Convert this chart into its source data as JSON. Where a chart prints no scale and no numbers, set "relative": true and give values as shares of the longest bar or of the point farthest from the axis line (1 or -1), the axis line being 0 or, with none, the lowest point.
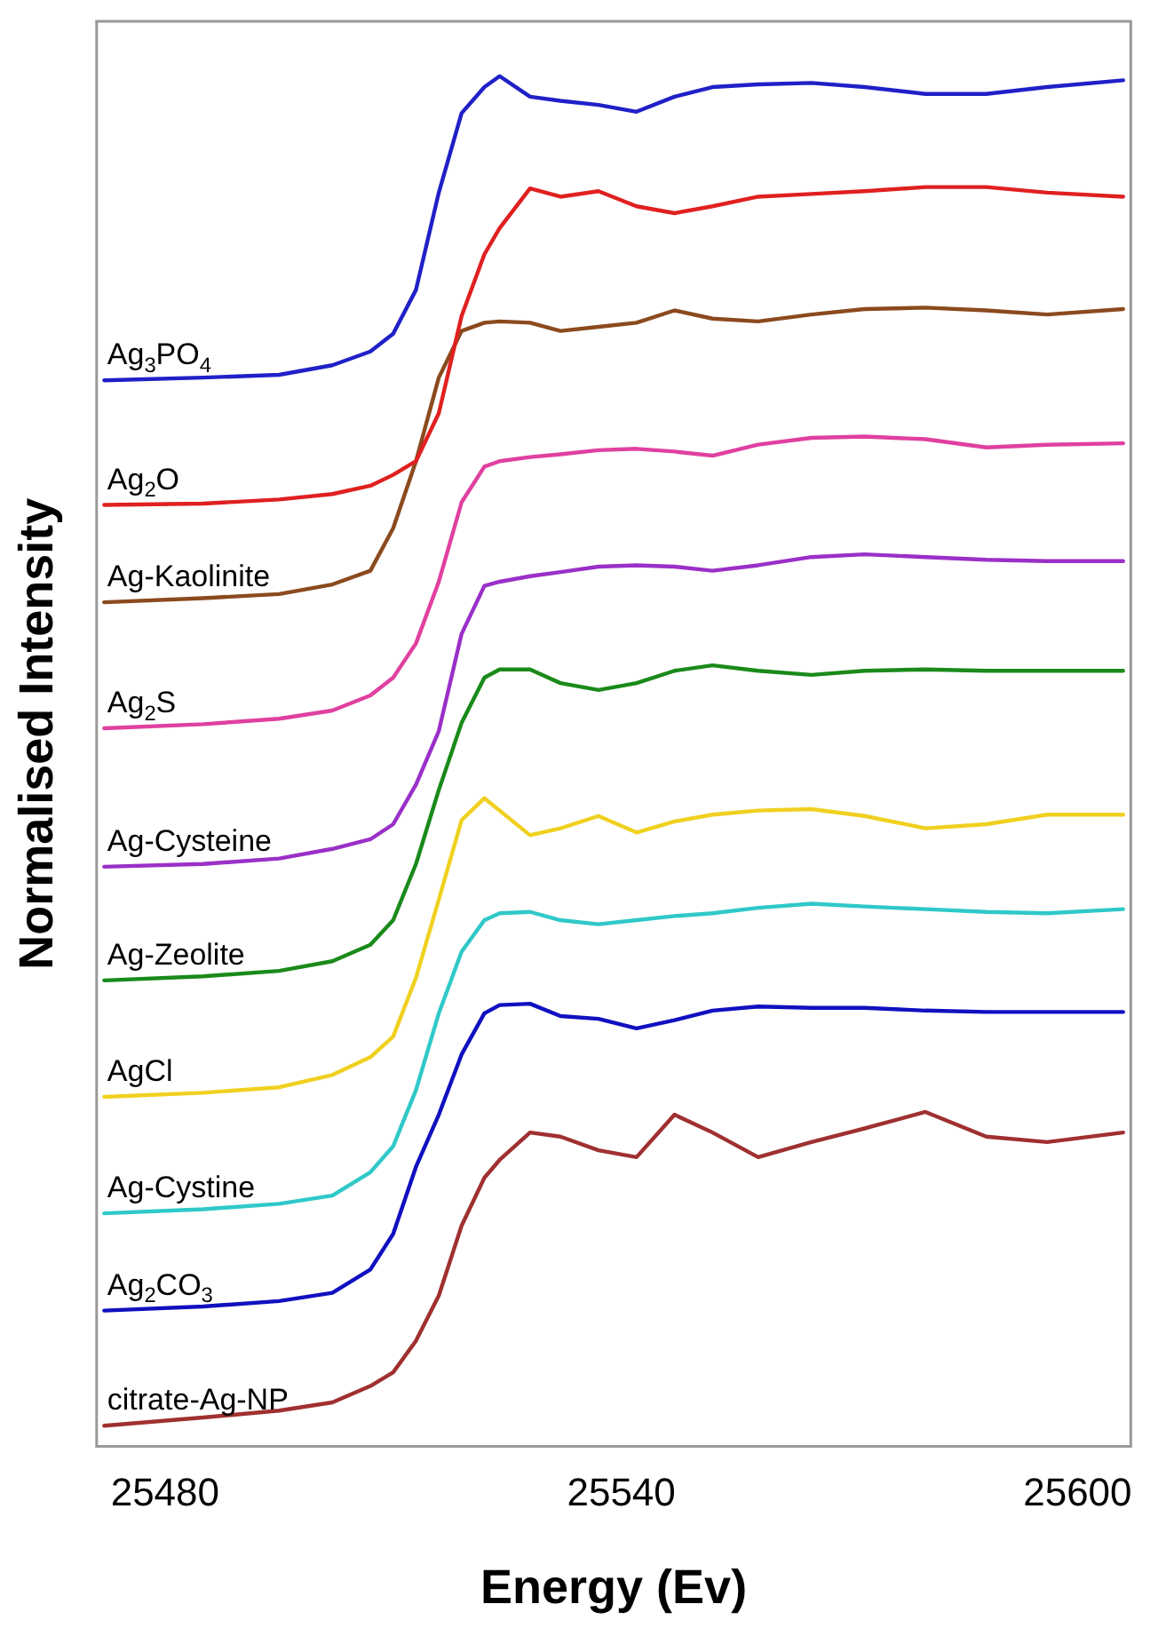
{
  "chart_data": {
    "type": "line",
    "xlabel": "Energy (Ev)",
    "ylabel": "Normalised Intensity",
    "relative": true,
    "xlim": [
      25471,
      25607
    ],
    "xticks": [
      25480,
      25540,
      25600
    ],
    "grid": false,
    "legend": false,
    "marker": "none",
    "line_style": "solid",
    "x": [
      25472,
      25485,
      25495,
      25502,
      25507,
      25510,
      25513,
      25516,
      25519,
      25522,
      25524,
      25528,
      25532,
      25537,
      25542,
      25547,
      25552,
      25558,
      25565,
      25572,
      25580,
      25588,
      25596,
      25606
    ],
    "series": [
      {
        "name": "Ag$_{3}$PO$_{4}$",
        "color": "#2020c8",
        "values": [
          0.778,
          0.78,
          0.782,
          0.789,
          0.799,
          0.812,
          0.844,
          0.915,
          0.973,
          0.992,
          1.0,
          0.985,
          0.982,
          0.979,
          0.974,
          0.985,
          0.992,
          0.994,
          0.995,
          0.992,
          0.987,
          0.987,
          0.992,
          0.997
        ]
      },
      {
        "name": "Ag$_{2}$O",
        "color": "#e02020",
        "values": [
          0.687,
          0.688,
          0.691,
          0.695,
          0.701,
          0.709,
          0.719,
          0.754,
          0.825,
          0.87,
          0.889,
          0.918,
          0.912,
          0.916,
          0.905,
          0.9,
          0.905,
          0.912,
          0.914,
          0.916,
          0.919,
          0.919,
          0.915,
          0.912
        ]
      },
      {
        "name": "Ag-Kaolinite",
        "color": "#8b4a1e",
        "values": [
          0.616,
          0.619,
          0.622,
          0.629,
          0.639,
          0.67,
          0.719,
          0.78,
          0.814,
          0.82,
          0.821,
          0.82,
          0.814,
          0.817,
          0.82,
          0.829,
          0.823,
          0.821,
          0.826,
          0.83,
          0.831,
          0.829,
          0.826,
          0.83
        ]
      },
      {
        "name": "Ag$_{2}$S",
        "color": "#e040a0",
        "values": [
          0.524,
          0.527,
          0.531,
          0.537,
          0.548,
          0.561,
          0.586,
          0.631,
          0.689,
          0.715,
          0.719,
          0.722,
          0.724,
          0.727,
          0.728,
          0.726,
          0.723,
          0.731,
          0.736,
          0.737,
          0.735,
          0.729,
          0.731,
          0.732
        ]
      },
      {
        "name": "Ag-Cysteine",
        "color": "#9a30c8",
        "values": [
          0.423,
          0.425,
          0.429,
          0.436,
          0.443,
          0.454,
          0.483,
          0.522,
          0.593,
          0.628,
          0.631,
          0.635,
          0.638,
          0.642,
          0.643,
          0.642,
          0.639,
          0.643,
          0.649,
          0.651,
          0.649,
          0.647,
          0.646,
          0.646
        ]
      },
      {
        "name": "Ag-Zeolite",
        "color": "#1a8a1a",
        "values": [
          0.34,
          0.343,
          0.347,
          0.354,
          0.366,
          0.384,
          0.425,
          0.479,
          0.528,
          0.561,
          0.567,
          0.567,
          0.557,
          0.552,
          0.557,
          0.566,
          0.57,
          0.566,
          0.563,
          0.566,
          0.567,
          0.566,
          0.566,
          0.566
        ]
      },
      {
        "name": "AgCl",
        "color": "#f0d020",
        "values": [
          0.255,
          0.258,
          0.262,
          0.271,
          0.284,
          0.299,
          0.342,
          0.399,
          0.457,
          0.473,
          0.464,
          0.446,
          0.451,
          0.46,
          0.448,
          0.456,
          0.461,
          0.464,
          0.465,
          0.46,
          0.451,
          0.454,
          0.461,
          0.461
        ]
      },
      {
        "name": "Ag-Cystine",
        "color": "#30c8c8",
        "values": [
          0.17,
          0.173,
          0.177,
          0.183,
          0.2,
          0.219,
          0.26,
          0.316,
          0.361,
          0.384,
          0.389,
          0.39,
          0.384,
          0.381,
          0.384,
          0.387,
          0.389,
          0.393,
          0.396,
          0.394,
          0.392,
          0.39,
          0.389,
          0.392
        ]
      },
      {
        "name": "Ag$_{2}$CO$_{3}$",
        "color": "#1010c0",
        "values": [
          0.099,
          0.102,
          0.106,
          0.112,
          0.129,
          0.155,
          0.204,
          0.242,
          0.286,
          0.316,
          0.322,
          0.323,
          0.314,
          0.312,
          0.305,
          0.311,
          0.318,
          0.321,
          0.32,
          0.32,
          0.318,
          0.317,
          0.317,
          0.317
        ]
      },
      {
        "name": "citrate-Ag-NP",
        "color": "#a03030",
        "values": [
          0.015,
          0.021,
          0.026,
          0.032,
          0.044,
          0.054,
          0.077,
          0.11,
          0.161,
          0.196,
          0.209,
          0.229,
          0.226,
          0.216,
          0.211,
          0.242,
          0.229,
          0.211,
          0.222,
          0.232,
          0.244,
          0.226,
          0.222,
          0.229
        ]
      }
    ]
  }
}
